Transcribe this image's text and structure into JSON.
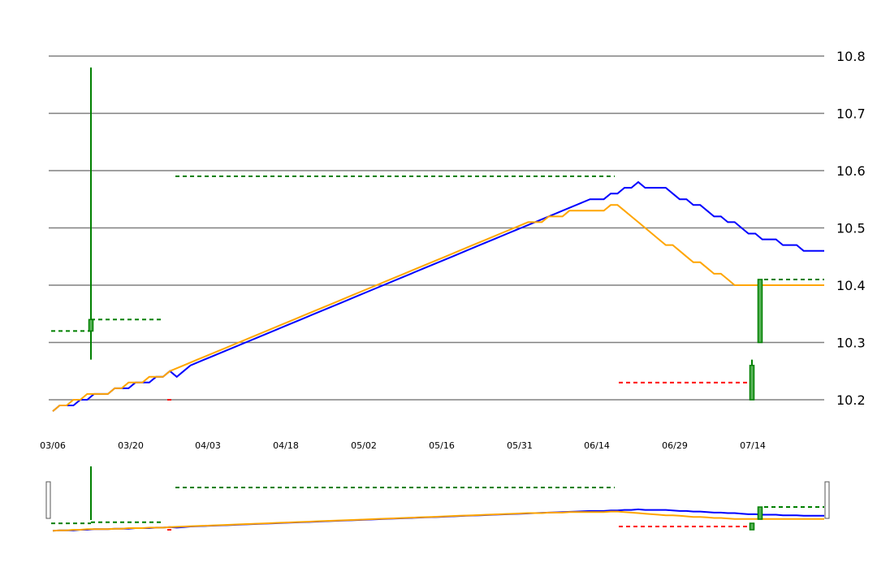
{
  "chart_data": {
    "type": "line",
    "x_ticks": [
      "03/06",
      "03/20",
      "04/03",
      "04/18",
      "05/02",
      "05/16",
      "05/31",
      "06/14",
      "06/29",
      "07/14"
    ],
    "y_ticks": [
      "10.8",
      "10.7",
      "10.6",
      "10.5",
      "10.4",
      "10.3",
      "10.2"
    ],
    "ylim": [
      10.2,
      10.8
    ],
    "grid": true,
    "colors": {
      "blue_line": "#0000ff",
      "orange_line": "#ffa500",
      "candle": "#008000",
      "candle_fill": "#55b055",
      "red_dash": "#ff0000",
      "grid": "#808080"
    },
    "series": [
      {
        "color": "blue",
        "points": [
          [
            0,
            10.18
          ],
          [
            1,
            10.19
          ],
          [
            3,
            10.19
          ],
          [
            4,
            10.2
          ],
          [
            5,
            10.2
          ],
          [
            6,
            10.21
          ],
          [
            8,
            10.21
          ],
          [
            9,
            10.22
          ],
          [
            11,
            10.22
          ],
          [
            12,
            10.23
          ],
          [
            14,
            10.23
          ],
          [
            15,
            10.24
          ],
          [
            16,
            10.24
          ],
          [
            17,
            10.25
          ],
          [
            18,
            10.24
          ],
          [
            19,
            10.25
          ],
          [
            20,
            10.26
          ],
          [
            22,
            10.27
          ],
          [
            24,
            10.28
          ],
          [
            26,
            10.29
          ],
          [
            28,
            10.3
          ],
          [
            30,
            10.31
          ],
          [
            32,
            10.32
          ],
          [
            34,
            10.33
          ],
          [
            36,
            10.34
          ],
          [
            38,
            10.35
          ],
          [
            40,
            10.36
          ],
          [
            42,
            10.37
          ],
          [
            44,
            10.38
          ],
          [
            46,
            10.39
          ],
          [
            48,
            10.4
          ],
          [
            50,
            10.41
          ],
          [
            52,
            10.42
          ],
          [
            54,
            10.43
          ],
          [
            56,
            10.44
          ],
          [
            58,
            10.45
          ],
          [
            60,
            10.46
          ],
          [
            62,
            10.47
          ],
          [
            64,
            10.48
          ],
          [
            66,
            10.49
          ],
          [
            68,
            10.5
          ],
          [
            70,
            10.51
          ],
          [
            72,
            10.52
          ],
          [
            74,
            10.53
          ],
          [
            76,
            10.54
          ],
          [
            78,
            10.55
          ],
          [
            80,
            10.55
          ],
          [
            81,
            10.56
          ],
          [
            82,
            10.56
          ],
          [
            83,
            10.57
          ],
          [
            84,
            10.57
          ],
          [
            85,
            10.58
          ],
          [
            86,
            10.57
          ],
          [
            87,
            10.57
          ],
          [
            88,
            10.57
          ],
          [
            89,
            10.57
          ],
          [
            90,
            10.56
          ],
          [
            91,
            10.55
          ],
          [
            92,
            10.55
          ],
          [
            93,
            10.54
          ],
          [
            94,
            10.54
          ],
          [
            95,
            10.53
          ],
          [
            96,
            10.52
          ],
          [
            97,
            10.52
          ],
          [
            98,
            10.51
          ],
          [
            99,
            10.51
          ],
          [
            100,
            10.5
          ],
          [
            101,
            10.49
          ],
          [
            102,
            10.49
          ],
          [
            103,
            10.48
          ],
          [
            104,
            10.48
          ],
          [
            105,
            10.48
          ],
          [
            106,
            10.47
          ],
          [
            107,
            10.47
          ],
          [
            108,
            10.47
          ],
          [
            109,
            10.46
          ],
          [
            110,
            10.46
          ],
          [
            111,
            10.46
          ],
          [
            112,
            10.46
          ]
        ]
      },
      {
        "color": "orange",
        "points": [
          [
            0,
            10.18
          ],
          [
            1,
            10.19
          ],
          [
            2,
            10.19
          ],
          [
            3,
            10.2
          ],
          [
            4,
            10.2
          ],
          [
            5,
            10.21
          ],
          [
            6,
            10.21
          ],
          [
            8,
            10.21
          ],
          [
            9,
            10.22
          ],
          [
            10,
            10.22
          ],
          [
            11,
            10.23
          ],
          [
            12,
            10.23
          ],
          [
            13,
            10.23
          ],
          [
            14,
            10.24
          ],
          [
            15,
            10.24
          ],
          [
            16,
            10.24
          ],
          [
            17,
            10.25
          ],
          [
            19,
            10.26
          ],
          [
            21,
            10.27
          ],
          [
            23,
            10.28
          ],
          [
            25,
            10.29
          ],
          [
            27,
            10.3
          ],
          [
            29,
            10.31
          ],
          [
            31,
            10.32
          ],
          [
            33,
            10.33
          ],
          [
            35,
            10.34
          ],
          [
            37,
            10.35
          ],
          [
            39,
            10.36
          ],
          [
            41,
            10.37
          ],
          [
            43,
            10.38
          ],
          [
            45,
            10.39
          ],
          [
            47,
            10.4
          ],
          [
            49,
            10.41
          ],
          [
            51,
            10.42
          ],
          [
            53,
            10.43
          ],
          [
            55,
            10.44
          ],
          [
            57,
            10.45
          ],
          [
            59,
            10.46
          ],
          [
            61,
            10.47
          ],
          [
            63,
            10.48
          ],
          [
            65,
            10.49
          ],
          [
            67,
            10.5
          ],
          [
            69,
            10.51
          ],
          [
            71,
            10.51
          ],
          [
            72,
            10.52
          ],
          [
            74,
            10.52
          ],
          [
            75,
            10.53
          ],
          [
            77,
            10.53
          ],
          [
            79,
            10.53
          ],
          [
            80,
            10.53
          ],
          [
            81,
            10.54
          ],
          [
            82,
            10.54
          ],
          [
            83,
            10.53
          ],
          [
            84,
            10.52
          ],
          [
            85,
            10.51
          ],
          [
            86,
            10.5
          ],
          [
            87,
            10.49
          ],
          [
            88,
            10.48
          ],
          [
            89,
            10.47
          ],
          [
            90,
            10.47
          ],
          [
            91,
            10.46
          ],
          [
            92,
            10.45
          ],
          [
            93,
            10.44
          ],
          [
            94,
            10.44
          ],
          [
            95,
            10.43
          ],
          [
            96,
            10.42
          ],
          [
            97,
            10.42
          ],
          [
            98,
            10.41
          ],
          [
            99,
            10.4
          ],
          [
            100,
            10.4
          ],
          [
            112,
            10.4
          ]
        ]
      }
    ]
  }
}
